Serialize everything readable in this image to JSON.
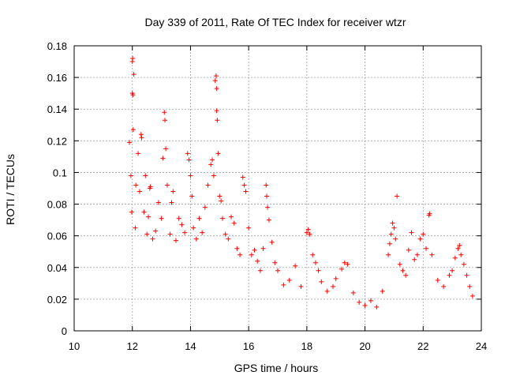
{
  "chart_data": {
    "type": "scatter",
    "title": "Day 339 of 2011, Rate Of TEC Index for receiver wtzr",
    "xlabel": "GPS time / hours",
    "ylabel": "ROTI / TECUs",
    "xlim": [
      10,
      24
    ],
    "ylim": [
      0,
      0.18
    ],
    "xticks": [
      "10",
      "12",
      "14",
      "16",
      "18",
      "20",
      "22",
      "24"
    ],
    "yticks": [
      "0",
      "0.02",
      "0.04",
      "0.06",
      "0.08",
      "0.1",
      "0.12",
      "0.14",
      "0.16",
      "0.18"
    ],
    "grid": true,
    "marker": "+",
    "color": "#ff0000",
    "series": [
      {
        "points": [
          [
            11.9,
            0.119
          ],
          [
            11.95,
            0.098
          ],
          [
            11.98,
            0.075
          ],
          [
            12.0,
            0.17
          ],
          [
            12.01,
            0.172
          ],
          [
            12.0,
            0.15
          ],
          [
            12.02,
            0.149
          ],
          [
            12.03,
            0.127
          ],
          [
            12.05,
            0.162
          ],
          [
            12.1,
            0.065
          ],
          [
            12.12,
            0.092
          ],
          [
            12.2,
            0.112
          ],
          [
            12.25,
            0.088
          ],
          [
            12.3,
            0.124
          ],
          [
            12.32,
            0.122
          ],
          [
            12.4,
            0.075
          ],
          [
            12.45,
            0.098
          ],
          [
            12.5,
            0.061
          ],
          [
            12.55,
            0.072
          ],
          [
            12.6,
            0.09
          ],
          [
            12.62,
            0.091
          ],
          [
            12.7,
            0.058
          ],
          [
            12.8,
            0.063
          ],
          [
            12.9,
            0.081
          ],
          [
            13.0,
            0.071
          ],
          [
            13.05,
            0.109
          ],
          [
            13.1,
            0.138
          ],
          [
            13.12,
            0.133
          ],
          [
            13.15,
            0.115
          ],
          [
            13.2,
            0.092
          ],
          [
            13.3,
            0.061
          ],
          [
            13.35,
            0.081
          ],
          [
            13.4,
            0.088
          ],
          [
            13.5,
            0.057
          ],
          [
            13.6,
            0.071
          ],
          [
            13.7,
            0.067
          ],
          [
            13.8,
            0.062
          ],
          [
            13.9,
            0.112
          ],
          [
            13.95,
            0.108
          ],
          [
            14.0,
            0.098
          ],
          [
            14.05,
            0.085
          ],
          [
            14.1,
            0.065
          ],
          [
            14.2,
            0.058
          ],
          [
            14.3,
            0.071
          ],
          [
            14.4,
            0.062
          ],
          [
            14.5,
            0.078
          ],
          [
            14.6,
            0.092
          ],
          [
            14.7,
            0.105
          ],
          [
            14.75,
            0.108
          ],
          [
            14.8,
            0.098
          ],
          [
            14.85,
            0.158
          ],
          [
            14.88,
            0.161
          ],
          [
            14.9,
            0.153
          ],
          [
            14.9,
            0.139
          ],
          [
            14.92,
            0.133
          ],
          [
            14.95,
            0.112
          ],
          [
            15.0,
            0.085
          ],
          [
            15.05,
            0.082
          ],
          [
            15.1,
            0.071
          ],
          [
            15.2,
            0.061
          ],
          [
            15.3,
            0.058
          ],
          [
            15.4,
            0.072
          ],
          [
            15.5,
            0.068
          ],
          [
            15.6,
            0.052
          ],
          [
            15.7,
            0.048
          ],
          [
            15.8,
            0.097
          ],
          [
            15.85,
            0.092
          ],
          [
            15.9,
            0.088
          ],
          [
            16.0,
            0.065
          ],
          [
            16.1,
            0.048
          ],
          [
            16.2,
            0.051
          ],
          [
            16.3,
            0.044
          ],
          [
            16.4,
            0.038
          ],
          [
            16.5,
            0.052
          ],
          [
            16.6,
            0.092
          ],
          [
            16.62,
            0.085
          ],
          [
            16.65,
            0.078
          ],
          [
            16.7,
            0.07
          ],
          [
            16.8,
            0.056
          ],
          [
            16.9,
            0.043
          ],
          [
            17.0,
            0.038
          ],
          [
            17.2,
            0.029
          ],
          [
            17.4,
            0.032
          ],
          [
            17.6,
            0.041
          ],
          [
            17.8,
            0.028
          ],
          [
            18.0,
            0.062
          ],
          [
            18.05,
            0.064
          ],
          [
            18.1,
            0.061
          ],
          [
            18.2,
            0.048
          ],
          [
            18.3,
            0.043
          ],
          [
            18.4,
            0.038
          ],
          [
            18.5,
            0.031
          ],
          [
            18.7,
            0.025
          ],
          [
            18.9,
            0.028
          ],
          [
            19.0,
            0.033
          ],
          [
            19.2,
            0.039
          ],
          [
            19.3,
            0.043
          ],
          [
            19.4,
            0.042
          ],
          [
            19.6,
            0.024
          ],
          [
            19.8,
            0.018
          ],
          [
            20.0,
            0.016
          ],
          [
            20.2,
            0.019
          ],
          [
            20.4,
            0.015
          ],
          [
            20.6,
            0.025
          ],
          [
            20.8,
            0.048
          ],
          [
            20.85,
            0.055
          ],
          [
            20.9,
            0.061
          ],
          [
            20.95,
            0.068
          ],
          [
            21.0,
            0.065
          ],
          [
            21.05,
            0.058
          ],
          [
            21.1,
            0.085
          ],
          [
            21.2,
            0.042
          ],
          [
            21.3,
            0.038
          ],
          [
            21.4,
            0.035
          ],
          [
            21.5,
            0.051
          ],
          [
            21.6,
            0.062
          ],
          [
            21.7,
            0.045
          ],
          [
            21.8,
            0.048
          ],
          [
            21.9,
            0.058
          ],
          [
            22.0,
            0.061
          ],
          [
            22.1,
            0.052
          ],
          [
            22.2,
            0.073
          ],
          [
            22.22,
            0.074
          ],
          [
            22.3,
            0.048
          ],
          [
            22.5,
            0.032
          ],
          [
            22.7,
            0.028
          ],
          [
            22.9,
            0.035
          ],
          [
            23.0,
            0.038
          ],
          [
            23.1,
            0.046
          ],
          [
            23.2,
            0.052
          ],
          [
            23.25,
            0.054
          ],
          [
            23.3,
            0.048
          ],
          [
            23.4,
            0.042
          ],
          [
            23.5,
            0.035
          ],
          [
            23.6,
            0.028
          ],
          [
            23.7,
            0.022
          ]
        ]
      }
    ]
  }
}
